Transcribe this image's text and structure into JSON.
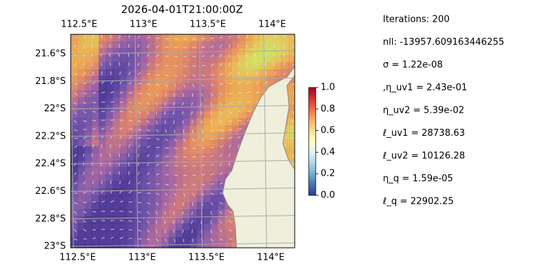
{
  "title": "2026-04-01T21:00:00Z",
  "map": {
    "xlim": [
      112.5,
      114.24
    ],
    "ylim": [
      -23.01,
      -21.457
    ],
    "xticks": [
      {
        "value": 112.5,
        "label": "112.5°E"
      },
      {
        "value": 113,
        "label": "113°E"
      },
      {
        "value": 113.5,
        "label": "113.5°E"
      },
      {
        "value": 114,
        "label": "114°E"
      }
    ],
    "yticks": [
      {
        "value": -21.6,
        "label": "21.6°S"
      },
      {
        "value": -21.8,
        "label": "21.8°S"
      },
      {
        "value": -22,
        "label": "22°S"
      },
      {
        "value": -22.2,
        "label": "22.2°S"
      },
      {
        "value": -22.4,
        "label": "22.4°S"
      },
      {
        "value": -22.6,
        "label": "22.6°S"
      },
      {
        "value": -22.8,
        "label": "22.8°S"
      },
      {
        "value": -23,
        "label": "23°S"
      }
    ],
    "grid": true
  },
  "colorbar": {
    "lim": [
      0,
      1
    ],
    "ticks": [
      {
        "value": 0,
        "label": "0.0"
      },
      {
        "value": 0.2,
        "label": "0.2"
      },
      {
        "value": 0.4,
        "label": "0.4"
      },
      {
        "value": 0.6,
        "label": "0.6"
      },
      {
        "value": 0.8,
        "label": "0.8"
      },
      {
        "value": 1,
        "label": "1.0"
      }
    ]
  },
  "stats": [
    "Iterations: 200",
    "nll: -13957.609163446255",
    "σ = 1.22e-08",
    ",η_uv1 = 2.43e-01",
    "η_uv2 = 5.39e-02",
    "ℓ_uv1 = 28738.63",
    "ℓ_uv2 = 10126.28",
    "η_q = 1.59e-05",
    "ℓ_q = 22902.25"
  ]
}
